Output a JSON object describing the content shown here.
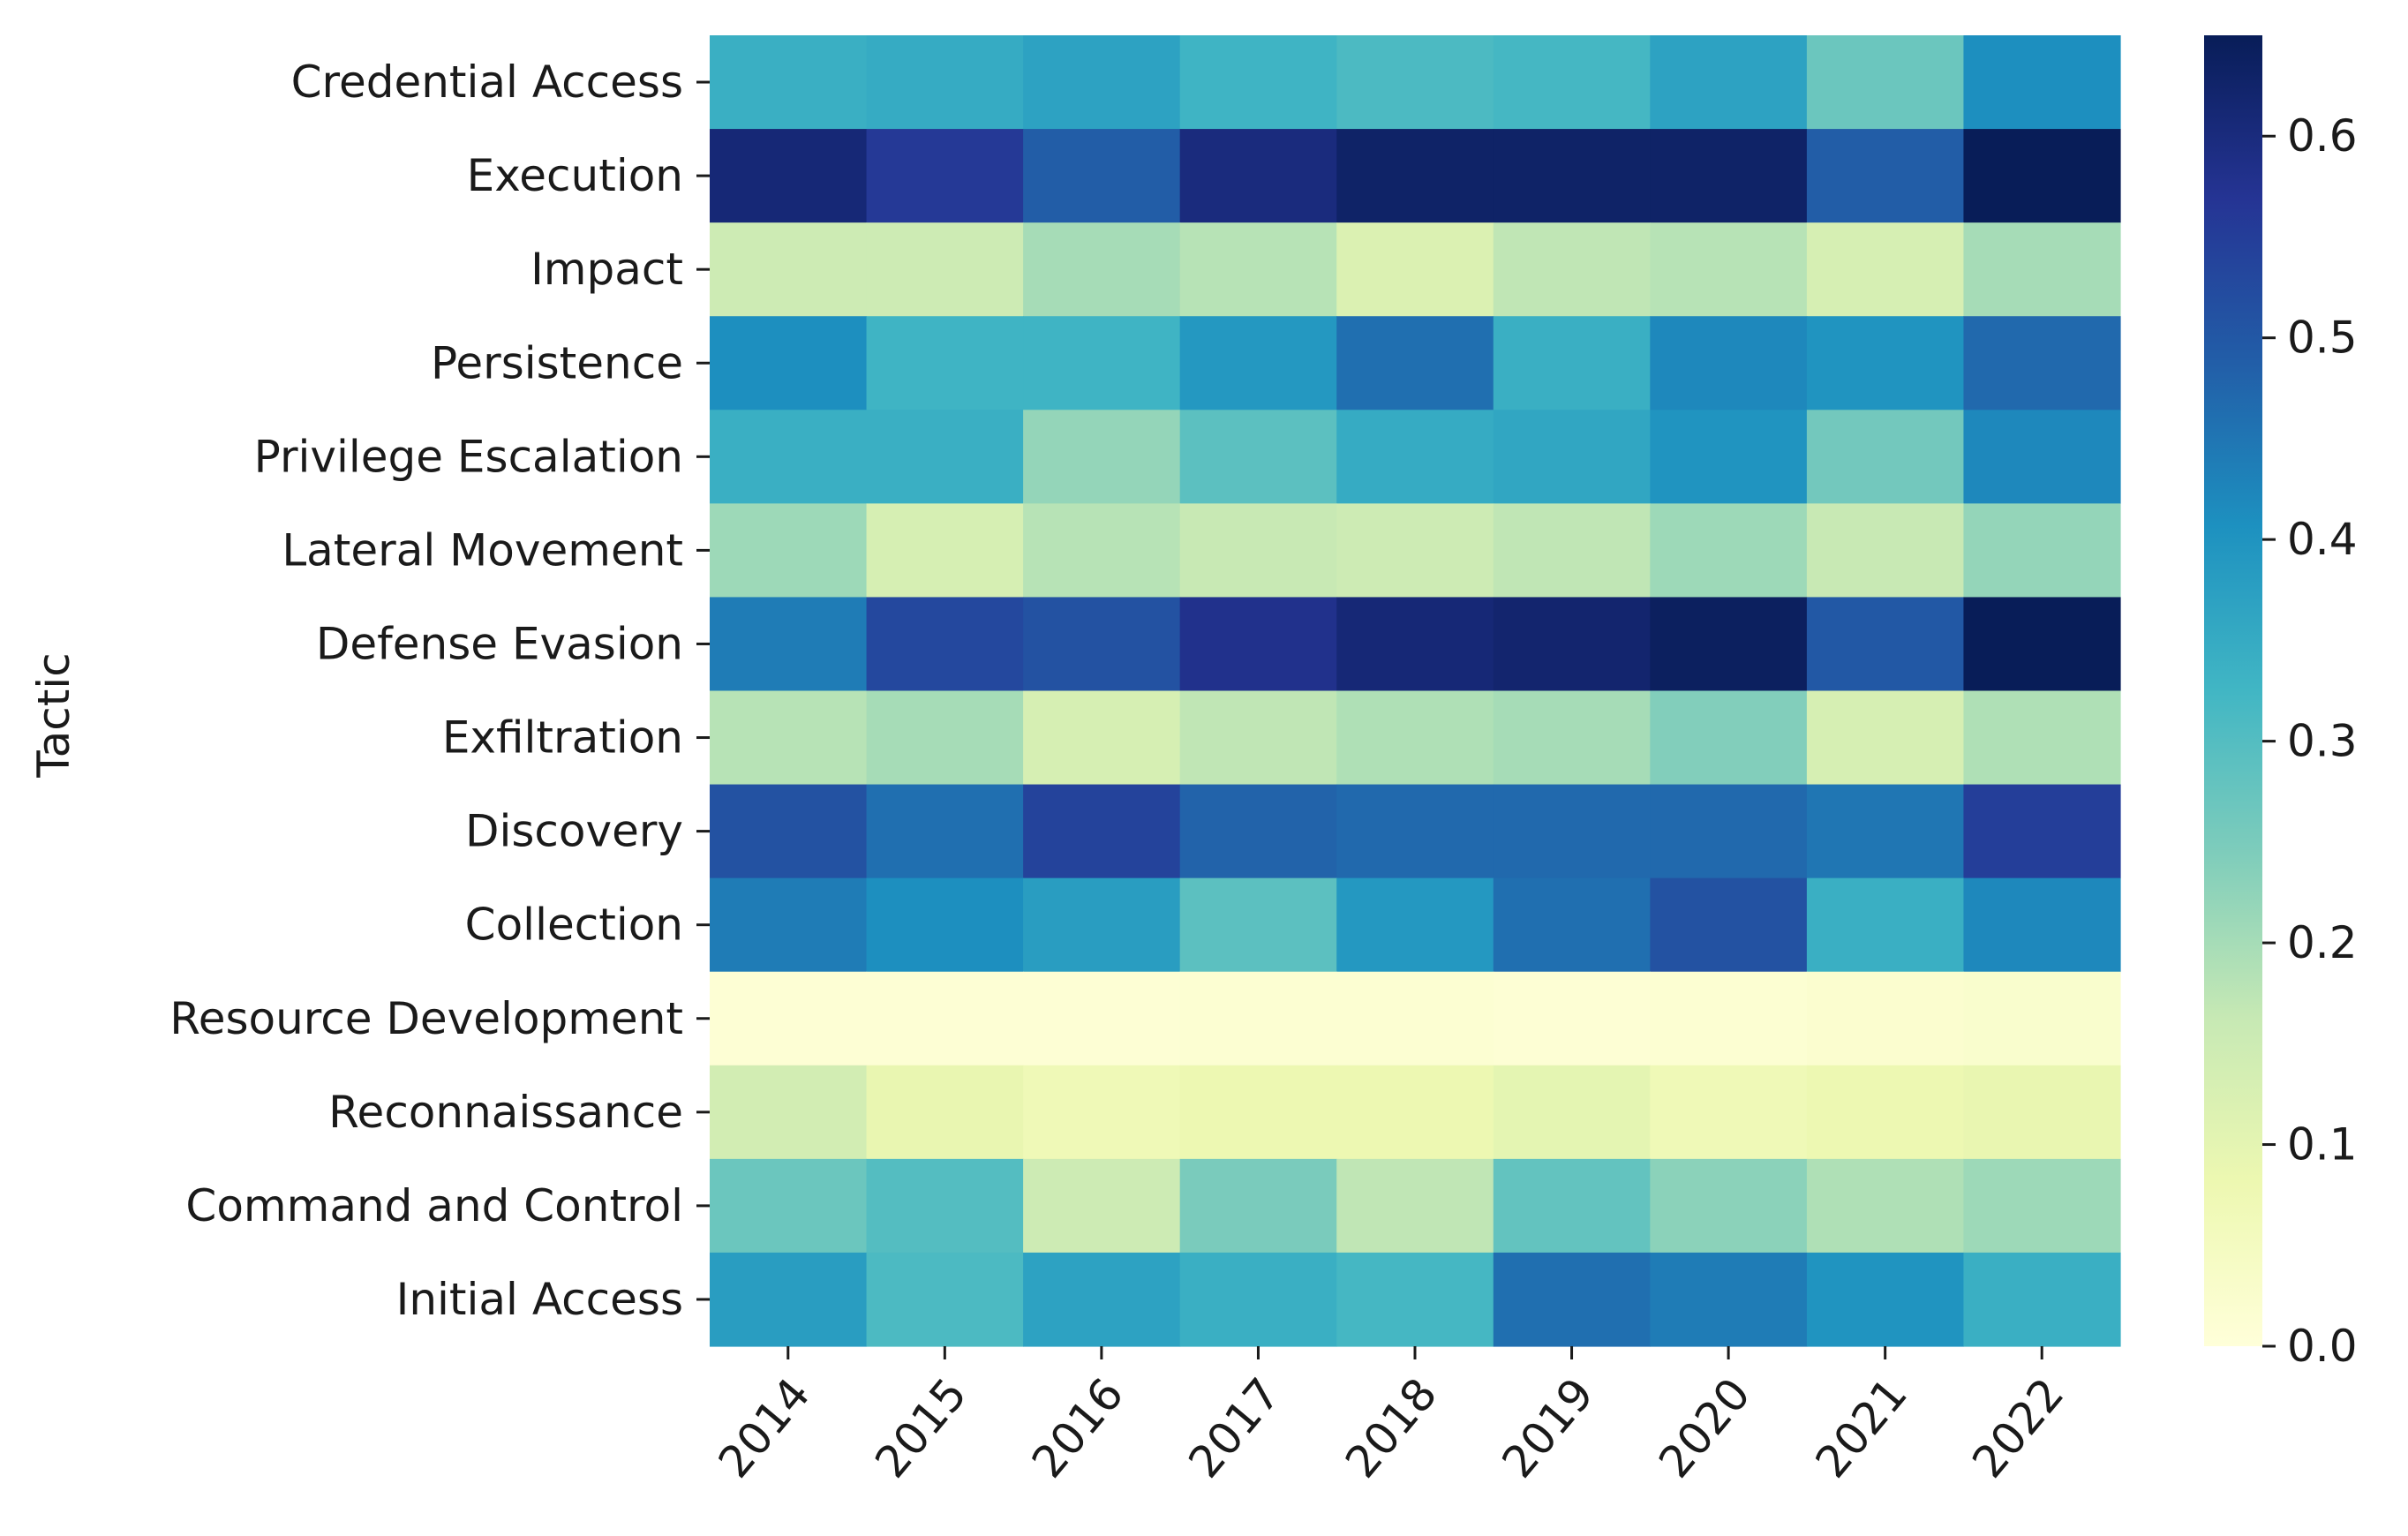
{
  "chart_data": {
    "type": "heatmap",
    "title": "",
    "xlabel": "",
    "ylabel": "Tactic",
    "x": [
      "2014",
      "2015",
      "2016",
      "2017",
      "2018",
      "2019",
      "2020",
      "2021",
      "2022"
    ],
    "y": [
      "Credential Access",
      "Execution",
      "Impact",
      "Persistence",
      "Privilege Escalation",
      "Lateral Movement",
      "Defense Evasion",
      "Exfiltration",
      "Discovery",
      "Collection",
      "Resource Development",
      "Reconnaissance",
      "Command and Control",
      "Initial Access"
    ],
    "values": [
      [
        0.34,
        0.35,
        0.37,
        0.33,
        0.31,
        0.32,
        0.37,
        0.27,
        0.41
      ],
      [
        0.61,
        0.56,
        0.49,
        0.6,
        0.63,
        0.63,
        0.63,
        0.49,
        0.65
      ],
      [
        0.15,
        0.15,
        0.2,
        0.18,
        0.12,
        0.17,
        0.18,
        0.13,
        0.2
      ],
      [
        0.41,
        0.33,
        0.33,
        0.39,
        0.46,
        0.34,
        0.42,
        0.4,
        0.47
      ],
      [
        0.34,
        0.34,
        0.22,
        0.29,
        0.35,
        0.36,
        0.4,
        0.26,
        0.42
      ],
      [
        0.21,
        0.13,
        0.18,
        0.16,
        0.15,
        0.17,
        0.21,
        0.16,
        0.22
      ],
      [
        0.44,
        0.53,
        0.51,
        0.58,
        0.61,
        0.62,
        0.64,
        0.5,
        0.65
      ],
      [
        0.18,
        0.2,
        0.13,
        0.17,
        0.19,
        0.2,
        0.24,
        0.13,
        0.19
      ],
      [
        0.51,
        0.46,
        0.54,
        0.48,
        0.47,
        0.47,
        0.47,
        0.45,
        0.55
      ],
      [
        0.44,
        0.41,
        0.38,
        0.29,
        0.39,
        0.46,
        0.51,
        0.34,
        0.42
      ],
      [
        0.01,
        0.01,
        0.01,
        0.015,
        0.015,
        0.01,
        0.015,
        0.02,
        0.025
      ],
      [
        0.14,
        0.09,
        0.07,
        0.08,
        0.08,
        0.1,
        0.07,
        0.08,
        0.09
      ],
      [
        0.27,
        0.3,
        0.15,
        0.25,
        0.17,
        0.28,
        0.23,
        0.19,
        0.21
      ],
      [
        0.38,
        0.31,
        0.37,
        0.34,
        0.32,
        0.46,
        0.44,
        0.4,
        0.34
      ]
    ],
    "colormap": "YlGnBu",
    "vmin": 0.0,
    "vmax": 0.65,
    "colorbar": {
      "ticks": [
        0.0,
        0.1,
        0.2,
        0.3,
        0.4,
        0.5,
        0.6
      ],
      "tick_labels": [
        "0.0",
        "0.1",
        "0.2",
        "0.3",
        "0.4",
        "0.5",
        "0.6"
      ]
    },
    "colormap_stops": [
      "#ffffd9",
      "#edf8b1",
      "#c7e9b4",
      "#7fcdbb",
      "#41b6c4",
      "#1d91c0",
      "#225ea8",
      "#253494",
      "#081d58"
    ]
  }
}
